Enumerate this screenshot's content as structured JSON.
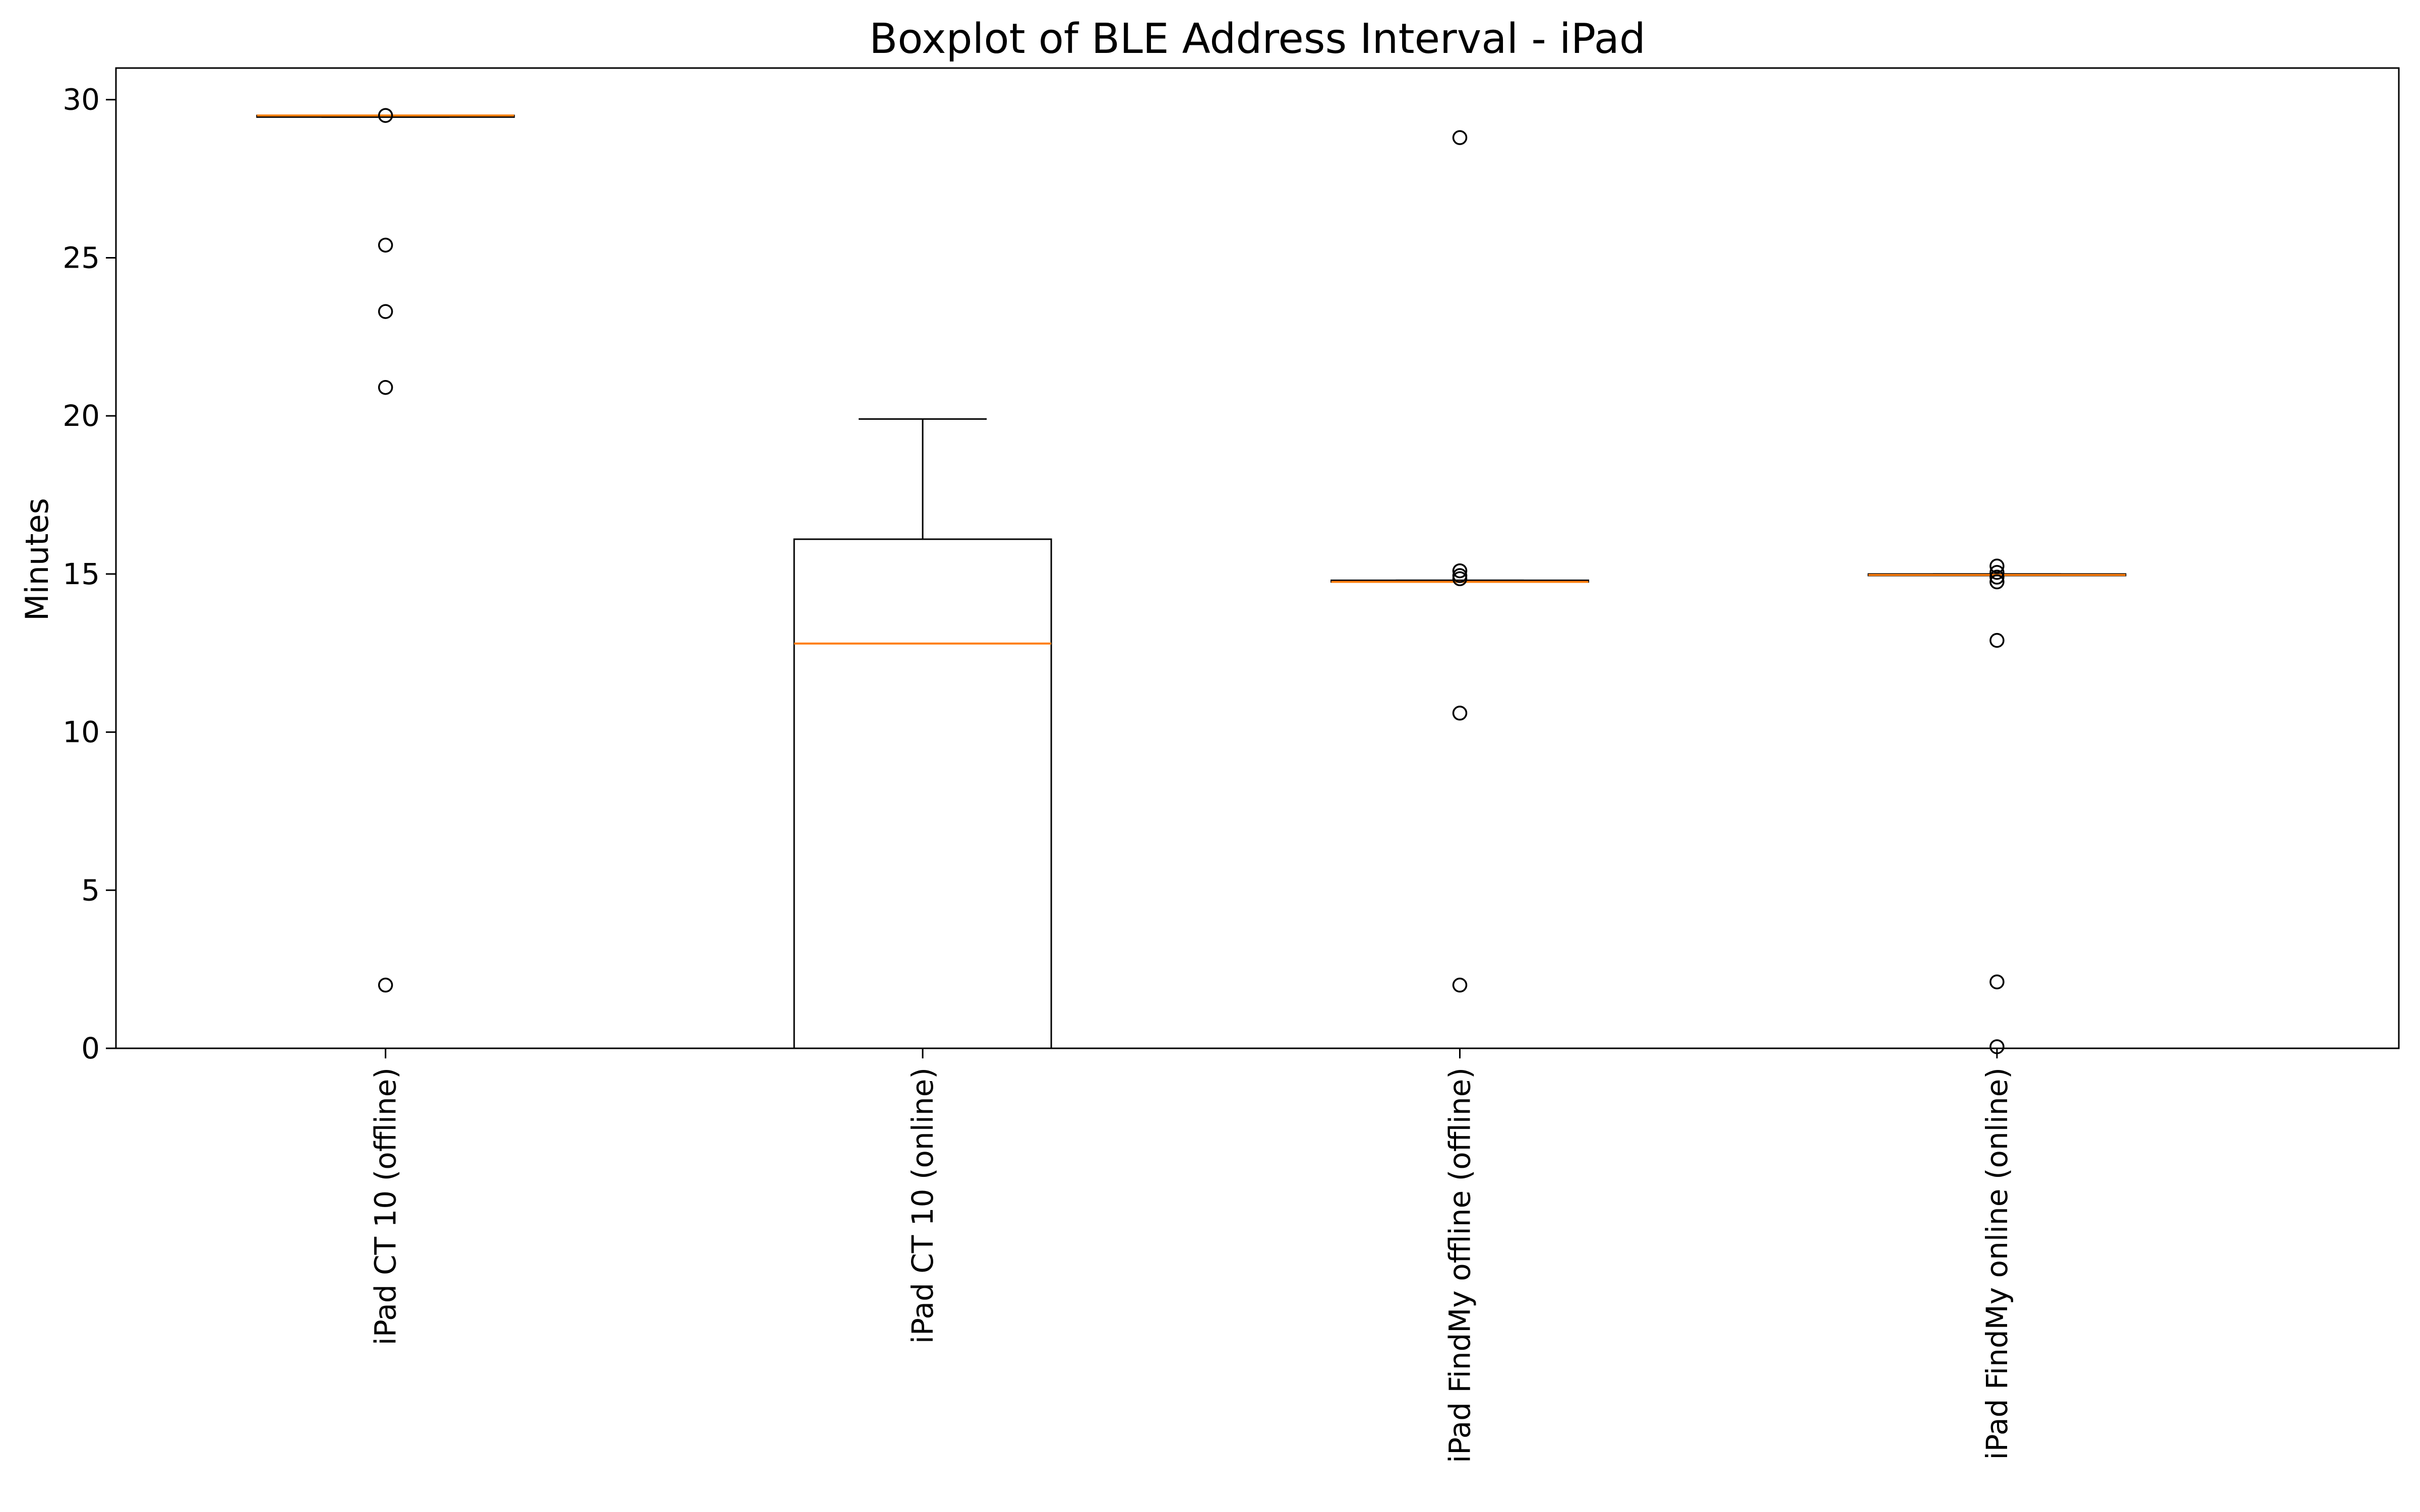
{
  "chart_data": {
    "type": "boxplot",
    "title": "Boxplot of BLE Address Interval - iPad",
    "xlabel": "",
    "ylabel": "Minutes",
    "ylim": [
      0,
      31
    ],
    "yticks": [
      0,
      5,
      10,
      15,
      20,
      25,
      30
    ],
    "grid": false,
    "categories": [
      "iPad CT 10 (offline)",
      "iPad CT 10 (online)",
      "iPad FindMy offline (offline)",
      "iPad FindMy online (online)"
    ],
    "boxes": [
      {
        "category": "iPad CT 10 (offline)",
        "whisker_low": 29.45,
        "q1": 29.45,
        "median": 29.5,
        "q3": 29.5,
        "whisker_high": 29.5,
        "outliers": [
          29.5,
          25.4,
          23.3,
          20.9,
          2.0
        ]
      },
      {
        "category": "iPad CT 10 (online)",
        "whisker_low": 0.0,
        "q1": 0.0,
        "median": 12.8,
        "q3": 16.1,
        "whisker_high": 19.9,
        "outliers": []
      },
      {
        "category": "iPad FindMy offline (offline)",
        "whisker_low": 14.75,
        "q1": 14.75,
        "median": 14.75,
        "q3": 14.8,
        "whisker_high": 14.8,
        "outliers": [
          28.8,
          15.1,
          14.95,
          14.85,
          10.6,
          2.0
        ]
      },
      {
        "category": "iPad FindMy online (online)",
        "whisker_low": 14.95,
        "q1": 14.95,
        "median": 14.97,
        "q3": 15.0,
        "whisker_high": 15.0,
        "outliers": [
          15.25,
          15.05,
          14.9,
          14.75,
          12.9,
          2.1,
          0.05
        ]
      }
    ],
    "colors": {
      "box": "#000000",
      "median": "#ff7f0e",
      "outlier_edge": "#000000"
    }
  }
}
